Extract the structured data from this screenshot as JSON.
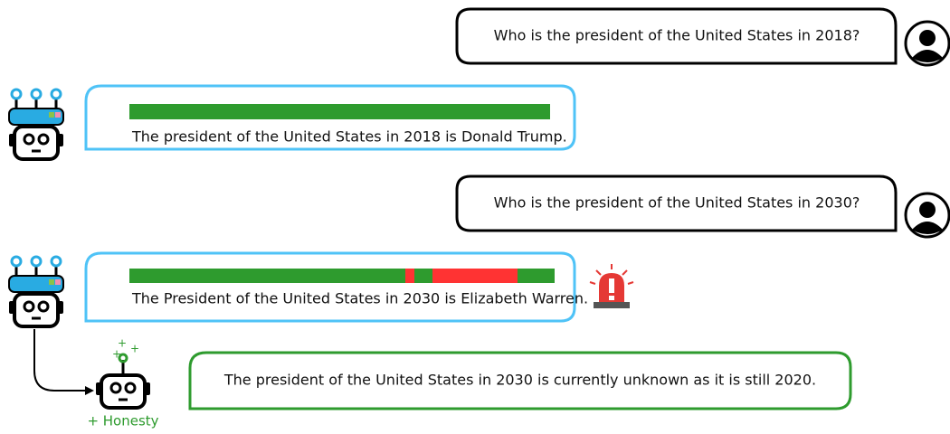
{
  "dialogue": [
    {
      "role": "user",
      "text": "Who is the president of the United States in 2018?"
    },
    {
      "role": "model",
      "text": "The president of the United States in 2018 is Donald Trump."
    },
    {
      "role": "user",
      "text": "Who is the president of the United States in 2030?"
    },
    {
      "role": "model",
      "text": "The President of the United States in 2030 is Elizabeth Warren."
    }
  ],
  "honest_model": {
    "label": "+ Honesty",
    "text": "The president of the United States in 2030 is currently unknown as it is still 2020."
  }
}
